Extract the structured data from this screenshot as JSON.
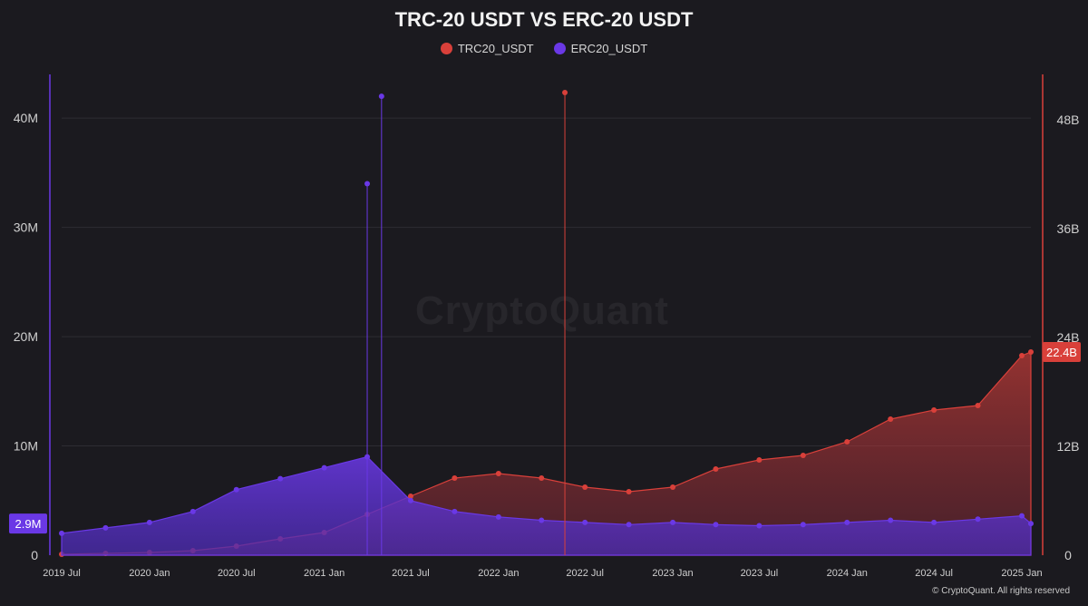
{
  "chart_data": {
    "type": "area",
    "title": "TRC-20 USDT VS ERC-20 USDT",
    "x_ticks": [
      "2019 Jul",
      "2020 Jan",
      "2020 Jul",
      "2021 Jan",
      "2021 Jul",
      "2022 Jan",
      "2022 Jul",
      "2023 Jan",
      "2023 Jul",
      "2024 Jan",
      "2024 Jul",
      "2025 Jan"
    ],
    "x_range": [
      "2019-07-01",
      "2025-01-20"
    ],
    "left_axis": {
      "ticks": [
        "0",
        "10M",
        "20M",
        "30M",
        "40M"
      ],
      "ylim": [
        0,
        44000000
      ]
    },
    "right_axis": {
      "ticks": [
        "0",
        "12B",
        "24B",
        "36B",
        "48B"
      ],
      "ylim": [
        0,
        53000000000
      ]
    },
    "grid": true,
    "legend_position": "top-center",
    "series": [
      {
        "name": "TRC20_USDT",
        "color": "#d9403a",
        "axis": "right",
        "last_value_label": "22.4B",
        "x": [
          "2019-07-01",
          "2019-10-01",
          "2020-01-01",
          "2020-04-01",
          "2020-07-01",
          "2020-10-01",
          "2021-01-01",
          "2021-04-01",
          "2021-07-01",
          "2021-10-01",
          "2022-01-01",
          "2022-04-01",
          "2022-07-01",
          "2022-10-01",
          "2023-01-01",
          "2023-04-01",
          "2023-07-01",
          "2023-10-01",
          "2024-01-01",
          "2024-04-01",
          "2024-07-01",
          "2024-10-01",
          "2025-01-01",
          "2025-01-20"
        ],
        "values": [
          100000000,
          200000000,
          300000000,
          500000000,
          1000000000,
          1800000000,
          2500000000,
          4500000000,
          6500000000,
          8500000000,
          9000000000,
          8500000000,
          7500000000,
          7000000000,
          7500000000,
          9500000000,
          10500000000,
          11000000000,
          12500000000,
          15000000000,
          16000000000,
          16500000000,
          22000000000,
          22400000000
        ]
      },
      {
        "name": "ERC20_USDT",
        "color": "#6a38e6",
        "axis": "left",
        "last_value_label": "2.9M",
        "x": [
          "2019-07-01",
          "2019-10-01",
          "2020-01-01",
          "2020-04-01",
          "2020-07-01",
          "2020-10-01",
          "2021-01-01",
          "2021-04-01",
          "2021-07-01",
          "2021-10-01",
          "2022-01-01",
          "2022-04-01",
          "2022-07-01",
          "2022-10-01",
          "2023-01-01",
          "2023-04-01",
          "2023-07-01",
          "2023-10-01",
          "2024-01-01",
          "2024-04-01",
          "2024-07-01",
          "2024-10-01",
          "2025-01-01",
          "2025-01-20"
        ],
        "values": [
          2000000,
          2500000,
          3000000,
          4000000,
          6000000,
          7000000,
          8000000,
          9000000,
          5000000,
          4000000,
          3500000,
          3200000,
          3000000,
          2800000,
          3000000,
          2800000,
          2700000,
          2800000,
          3000000,
          3200000,
          3000000,
          3300000,
          3600000,
          2900000
        ]
      }
    ],
    "spikes": [
      {
        "series": "ERC20_USDT",
        "x": "2021-05-01",
        "value": 42000000
      },
      {
        "series": "ERC20_USDT",
        "x": "2021-04-01",
        "value": 34000000
      },
      {
        "series": "TRC20_USDT",
        "x": "2022-05-20",
        "value": 51000000000
      }
    ]
  },
  "footer": "© CryptoQuant. All rights reserved",
  "watermark": "CryptoQuant"
}
